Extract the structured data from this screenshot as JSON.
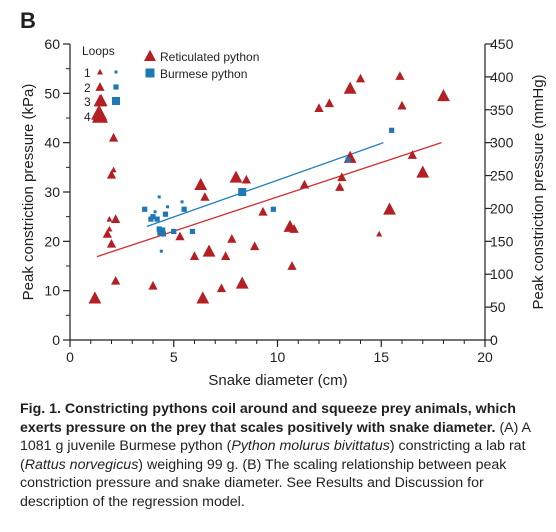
{
  "panel_label": "B",
  "chart_data": {
    "type": "scatter",
    "panel": "B",
    "xlabel": "Snake diameter (cm)",
    "ylabel": "Peak constriction pressure (kPa)",
    "y2label": "Peak constriction pressure (mmHg)",
    "xlim": [
      0,
      20
    ],
    "ylim": [
      0,
      60
    ],
    "y2lim": [
      0,
      450
    ],
    "xticks": [
      0,
      5,
      10,
      15,
      20
    ],
    "yticks": [
      0,
      10,
      20,
      30,
      40,
      50,
      60
    ],
    "y2ticks": [
      0,
      50,
      100,
      150,
      200,
      250,
      300,
      350,
      400,
      450
    ],
    "grid": false,
    "legend": {
      "placement": "top-left",
      "loops_title": "Loops",
      "loop_labels": [
        "1",
        "2",
        "3",
        "4"
      ],
      "entries": [
        {
          "name": "Reticulated python",
          "marker": "triangle",
          "color": "#b41f24"
        },
        {
          "name": "Burmese python",
          "marker": "square",
          "color": "#1f77b4"
        }
      ]
    },
    "marker_size_encodes": "Loops",
    "series": [
      {
        "name": "Reticulated python",
        "marker": "triangle",
        "color": "#b41f24",
        "points": [
          {
            "x": 1.2,
            "y": 8.5,
            "loops": 3
          },
          {
            "x": 1.4,
            "y": 46,
            "loops": 4
          },
          {
            "x": 1.5,
            "y": 48.5,
            "loops": 3
          },
          {
            "x": 1.8,
            "y": 21.5,
            "loops": 2
          },
          {
            "x": 1.9,
            "y": 22.5,
            "loops": 1
          },
          {
            "x": 1.9,
            "y": 24.5,
            "loops": 1
          },
          {
            "x": 2.0,
            "y": 19.5,
            "loops": 2
          },
          {
            "x": 2.0,
            "y": 33.5,
            "loops": 2
          },
          {
            "x": 2.1,
            "y": 34.5,
            "loops": 1
          },
          {
            "x": 2.1,
            "y": 41,
            "loops": 2
          },
          {
            "x": 2.2,
            "y": 24.5,
            "loops": 2
          },
          {
            "x": 2.2,
            "y": 12,
            "loops": 2
          },
          {
            "x": 4.0,
            "y": 11,
            "loops": 2
          },
          {
            "x": 5.0,
            "y": 22,
            "loops": 1
          },
          {
            "x": 5.3,
            "y": 21,
            "loops": 2
          },
          {
            "x": 6.0,
            "y": 17,
            "loops": 2
          },
          {
            "x": 6.3,
            "y": 31.5,
            "loops": 3
          },
          {
            "x": 6.4,
            "y": 8.5,
            "loops": 3
          },
          {
            "x": 6.5,
            "y": 29,
            "loops": 2
          },
          {
            "x": 6.7,
            "y": 18,
            "loops": 3
          },
          {
            "x": 7.3,
            "y": 10.5,
            "loops": 2
          },
          {
            "x": 7.5,
            "y": 17,
            "loops": 2
          },
          {
            "x": 7.8,
            "y": 20.5,
            "loops": 2
          },
          {
            "x": 8.0,
            "y": 33,
            "loops": 3
          },
          {
            "x": 8.3,
            "y": 11.5,
            "loops": 3
          },
          {
            "x": 8.5,
            "y": 32.5,
            "loops": 2
          },
          {
            "x": 8.9,
            "y": 19,
            "loops": 2
          },
          {
            "x": 9.3,
            "y": 26,
            "loops": 2
          },
          {
            "x": 10.6,
            "y": 23,
            "loops": 3
          },
          {
            "x": 10.7,
            "y": 15,
            "loops": 2
          },
          {
            "x": 10.8,
            "y": 22.5,
            "loops": 2
          },
          {
            "x": 11.3,
            "y": 31.5,
            "loops": 2
          },
          {
            "x": 12.0,
            "y": 47,
            "loops": 2
          },
          {
            "x": 12.5,
            "y": 48,
            "loops": 2
          },
          {
            "x": 13.0,
            "y": 31,
            "loops": 2
          },
          {
            "x": 13.1,
            "y": 33,
            "loops": 2
          },
          {
            "x": 13.5,
            "y": 51,
            "loops": 3
          },
          {
            "x": 13.5,
            "y": 37,
            "loops": 3
          },
          {
            "x": 14.0,
            "y": 53,
            "loops": 2
          },
          {
            "x": 14.9,
            "y": 21.5,
            "loops": 1
          },
          {
            "x": 15.4,
            "y": 26.5,
            "loops": 3
          },
          {
            "x": 15.9,
            "y": 53.5,
            "loops": 2
          },
          {
            "x": 16.0,
            "y": 47.5,
            "loops": 2
          },
          {
            "x": 16.5,
            "y": 37.5,
            "loops": 2
          },
          {
            "x": 17.0,
            "y": 34,
            "loops": 3
          },
          {
            "x": 18.0,
            "y": 49.5,
            "loops": 3
          }
        ]
      },
      {
        "name": "Burmese python",
        "marker": "square",
        "color": "#1f77b4",
        "points": [
          {
            "x": 3.6,
            "y": 26.5,
            "loops": 2
          },
          {
            "x": 3.9,
            "y": 24.5,
            "loops": 2
          },
          {
            "x": 4.0,
            "y": 25,
            "loops": 2
          },
          {
            "x": 4.1,
            "y": 26,
            "loops": 1
          },
          {
            "x": 4.2,
            "y": 24.5,
            "loops": 2
          },
          {
            "x": 4.3,
            "y": 29,
            "loops": 1
          },
          {
            "x": 4.3,
            "y": 22.5,
            "loops": 2
          },
          {
            "x": 4.4,
            "y": 22,
            "loops": 3
          },
          {
            "x": 4.4,
            "y": 18,
            "loops": 1
          },
          {
            "x": 4.5,
            "y": 21.5,
            "loops": 2
          },
          {
            "x": 4.6,
            "y": 25.5,
            "loops": 2
          },
          {
            "x": 4.7,
            "y": 27,
            "loops": 1
          },
          {
            "x": 5.0,
            "y": 22,
            "loops": 2
          },
          {
            "x": 5.4,
            "y": 28,
            "loops": 1
          },
          {
            "x": 5.5,
            "y": 26.5,
            "loops": 2
          },
          {
            "x": 5.9,
            "y": 22,
            "loops": 2
          },
          {
            "x": 8.3,
            "y": 30,
            "loops": 3
          },
          {
            "x": 9.8,
            "y": 26.5,
            "loops": 2
          },
          {
            "x": 13.4,
            "y": 36.5,
            "loops": 2
          },
          {
            "x": 15.5,
            "y": 42.5,
            "loops": 2
          }
        ]
      }
    ],
    "regression_lines": [
      {
        "series": "Reticulated python",
        "color": "#d12d31",
        "x": [
          1.3,
          17.9
        ],
        "y": [
          16.9,
          40
        ]
      },
      {
        "series": "Burmese python",
        "color": "#1f7fbf",
        "x": [
          3.7,
          15.1
        ],
        "y": [
          23,
          40
        ]
      }
    ]
  },
  "caption": {
    "title": "Fig. 1. Constricting pythons coil around and squeeze prey animals, which exerts pressure on the prey that scales positively with snake diameter.",
    "a_label": "(A) A 1081 g juvenile Burmese python (",
    "a_species": "Python molurus bivittatus",
    "a_mid": ") constricting a lab rat (",
    "a_rat": "Rattus norvegicus",
    "a_end": ") weighing 99 g. (B) The scaling relationship between peak constriction pressure and snake diameter. See Results and Discussion for description of the regression model."
  }
}
